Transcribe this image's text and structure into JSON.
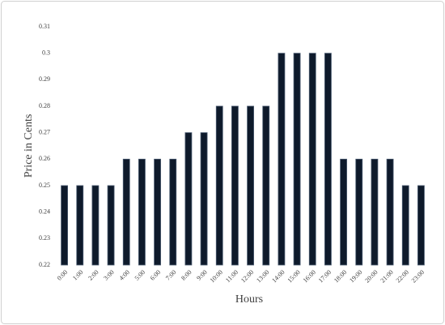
{
  "chart_data": {
    "type": "bar",
    "x_label": "Hours",
    "y_label": "Price in Cents",
    "categories": [
      "0:00",
      "1:00",
      "2:00",
      "3:00",
      "4:00",
      "5:00",
      "6:00",
      "7:00",
      "8:00",
      "9:00",
      "10:00",
      "11:00",
      "12:00",
      "13:00",
      "14:00",
      "15:00",
      "16:00",
      "17:00",
      "18:00",
      "19:00",
      "20:00",
      "21:00",
      "22:00",
      "23:00"
    ],
    "values": [
      0.25,
      0.25,
      0.25,
      0.25,
      0.26,
      0.26,
      0.26,
      0.26,
      0.27,
      0.27,
      0.28,
      0.28,
      0.28,
      0.28,
      0.3,
      0.3,
      0.3,
      0.3,
      0.26,
      0.26,
      0.26,
      0.26,
      0.25,
      0.25
    ],
    "color": "#0e1a2b",
    "ylim": [
      0.22,
      0.31
    ],
    "yticks": [
      0.22,
      0.23,
      0.24,
      0.25,
      0.26,
      0.27,
      0.28,
      0.29,
      0.3,
      0.31
    ],
    "grid": false
  }
}
